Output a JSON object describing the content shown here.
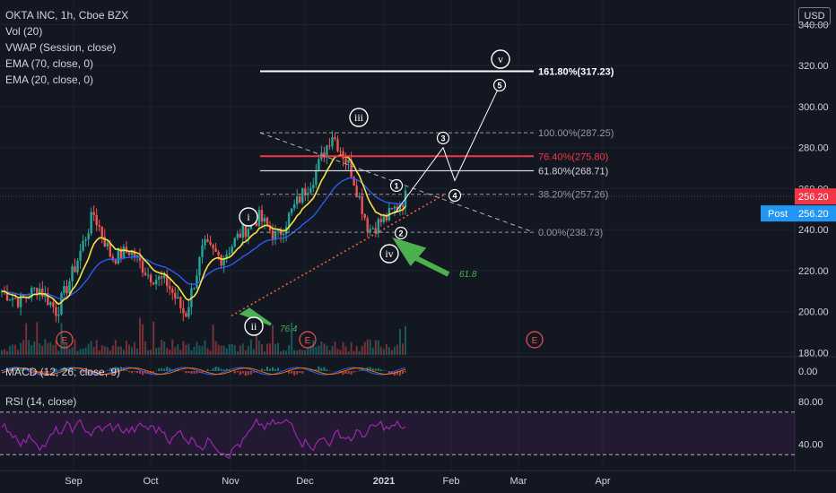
{
  "legend": {
    "symbol": "OKTA INC, 1h, Cboe BZX",
    "vol": "Vol (20)",
    "vwap": "VWAP (Session, close)",
    "ema70": "EMA (70, close, 0)",
    "ema20": "EMA (20, close, 0)"
  },
  "currency": "USD",
  "macd_label": "MACD (12, 26, close, 9)",
  "rsi_label": "RSI (14, close)",
  "colors": {
    "background": "#131722",
    "up": "#26a69a",
    "down": "#ef5350",
    "ema20": "#f7e43e",
    "ema70": "#2962ff",
    "rsi": "#9c27b0",
    "fib_red": "#f23645",
    "trend_red": "#e8643c",
    "arrow_green": "#4caf50",
    "price_tag": "#f23645",
    "post_tag": "#2196f3"
  },
  "chart_data": [
    {
      "type": "candlestick",
      "pane": "price",
      "y_axis": {
        "ticks": [
          "180.00",
          "200.00",
          "220.00",
          "240.00",
          "260.00",
          "280.00",
          "300.00",
          "320.00",
          "340.00"
        ],
        "ylim": [
          178,
          352
        ]
      },
      "x_axis": {
        "ticks": [
          "Sep",
          "Oct",
          "Nov",
          "Dec",
          "2021",
          "Feb",
          "Mar",
          "Apr"
        ]
      },
      "price_path": [
        [
          "Aug",
          210
        ],
        [
          "Sep",
          205
        ],
        [
          "Sep",
          212
        ],
        [
          "Sep",
          200
        ],
        [
          "Sep",
          222
        ],
        [
          "Oct",
          248
        ],
        [
          "Oct",
          226
        ],
        [
          "Oct",
          230
        ],
        [
          "Oct",
          218
        ],
        [
          "Oct",
          214
        ],
        [
          "Nov",
          198
        ],
        [
          "Nov",
          232
        ],
        [
          "Nov",
          226
        ],
        [
          "Nov",
          238
        ],
        [
          "Nov",
          246
        ],
        [
          "Dec",
          236
        ],
        [
          "Dec",
          252
        ],
        [
          "Dec",
          266
        ],
        [
          "Dec",
          287
        ],
        [
          "Dec",
          270
        ],
        [
          "2021",
          240
        ],
        [
          "2021",
          246
        ],
        [
          "2021",
          256
        ]
      ],
      "current_price": "256.20",
      "post_label": "Post",
      "post_price": "256.20",
      "fibonacci": [
        {
          "label": "161.80%(317.23)",
          "value": 317.23
        },
        {
          "label": "100.00%(287.25)",
          "value": 287.25
        },
        {
          "label": "76.40%(275.80)",
          "value": 275.8
        },
        {
          "label": "61.80%(268.71)",
          "value": 268.71
        },
        {
          "label": "38.20%(257.26)",
          "value": 257.26
        },
        {
          "label": "0.00%(238.73)",
          "value": 238.73
        }
      ],
      "wave_labels": [
        "i",
        "ii",
        "iii",
        "iv",
        "v",
        "1",
        "2",
        "3",
        "4",
        "5"
      ],
      "annotations": [
        "76.4",
        "61.8"
      ],
      "earnings_marks": [
        "E",
        "E",
        "E"
      ]
    },
    {
      "type": "macd",
      "pane": "macd",
      "y_axis": {
        "ticks": [
          "0.00"
        ]
      }
    },
    {
      "type": "line",
      "pane": "rsi",
      "y_axis": {
        "ticks": [
          "80.00",
          "40.00"
        ],
        "bands": [
          70,
          30
        ]
      }
    }
  ]
}
